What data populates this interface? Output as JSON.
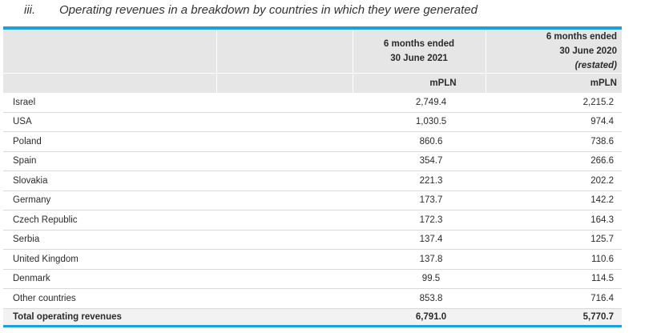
{
  "heading": {
    "number": "iii.",
    "title": "Operating revenues in a breakdown by countries in which they were generated"
  },
  "columns": {
    "col2_line1": "6 months ended",
    "col2_line2": "30 June 2021",
    "col3_line1": "6 months ended",
    "col3_line2": "30 June 2020",
    "col3_line3": "(restated)",
    "unit2": "mPLN",
    "unit3": "mPLN"
  },
  "rows": [
    {
      "country": "Israel",
      "h1_2021": "2,749.4",
      "h1_2020": "2,215.2"
    },
    {
      "country": "USA",
      "h1_2021": "1,030.5",
      "h1_2020": "974.4"
    },
    {
      "country": "Poland",
      "h1_2021": "860.6",
      "h1_2020": "738.6"
    },
    {
      "country": "Spain",
      "h1_2021": "354.7",
      "h1_2020": "266.6"
    },
    {
      "country": "Slovakia",
      "h1_2021": "221.3",
      "h1_2020": "202.2"
    },
    {
      "country": "Germany",
      "h1_2021": "173.7",
      "h1_2020": "142.2"
    },
    {
      "country": "Czech Republic",
      "h1_2021": "172.3",
      "h1_2020": "164.3"
    },
    {
      "country": "Serbia",
      "h1_2021": "137.4",
      "h1_2020": "125.7"
    },
    {
      "country": "United Kingdom",
      "h1_2021": "137.8",
      "h1_2020": "110.6"
    },
    {
      "country": "Denmark",
      "h1_2021": "99.5",
      "h1_2020": "114.5"
    },
    {
      "country": "Other countries",
      "h1_2021": "853.8",
      "h1_2020": "716.4"
    }
  ],
  "total": {
    "label": "Total operating revenues",
    "h1_2021": "6,791.0",
    "h1_2020": "5,770.7"
  },
  "colors": {
    "accent": "#1aa1dc",
    "header_bg": "#e6e6e6",
    "total_bg": "#f2f2f2"
  }
}
